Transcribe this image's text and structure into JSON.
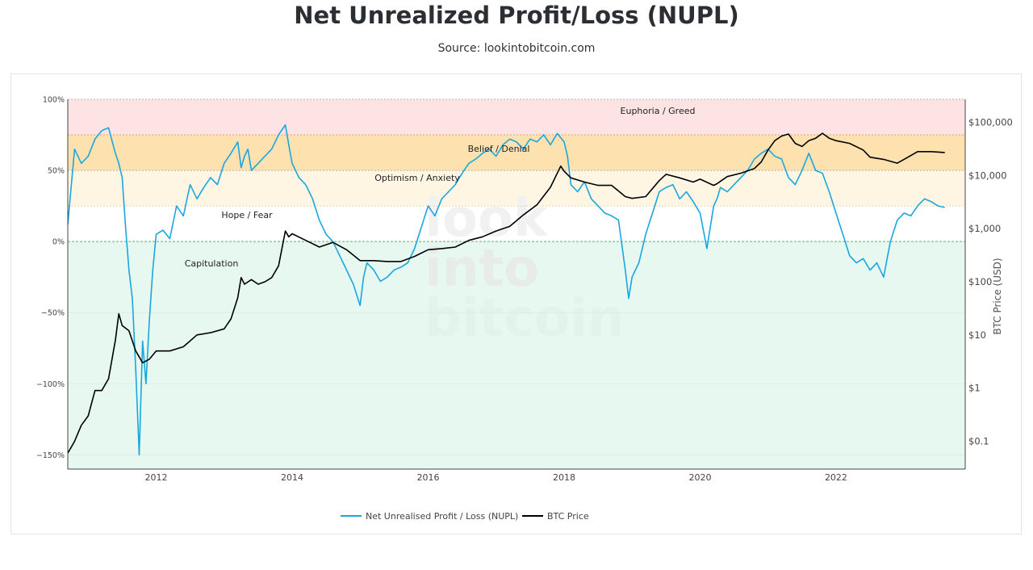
{
  "title": "Net Unrealized Profit/Loss (NUPL)",
  "subtitle": "Source: lookintobitcoin.com",
  "watermark": [
    "look",
    "into",
    "bitcoin"
  ],
  "colors": {
    "nupl": "#1aa6df",
    "btc": "#000000",
    "euphoria": "#fde3e3",
    "belief": "#fde2b0",
    "optimism": "#fef6e3",
    "hope": "#ffffff",
    "capitulation": "#e6f8ef"
  },
  "chart_data": {
    "type": "line",
    "title": "Net Unrealized Profit/Loss (NUPL)",
    "x_range": [
      "2010-09",
      "2023-10"
    ],
    "x_ticks": [
      "2012",
      "2014",
      "2016",
      "2018",
      "2020",
      "2022"
    ],
    "y_left": {
      "label": "",
      "range": [
        -160,
        100
      ],
      "ticks": [
        "100%",
        "50%",
        "0%",
        "−50%",
        "−100%",
        "−150%"
      ],
      "tick_values": [
        100,
        50,
        0,
        -50,
        -100,
        -150
      ]
    },
    "y_right": {
      "label": "BTC Price (USD)",
      "scale": "log",
      "ticks": [
        "$100,000",
        "$10,000",
        "$1,000",
        "$100",
        "$10",
        "$1",
        "$0.1"
      ],
      "tick_values": [
        100000,
        10000,
        1000,
        100,
        10,
        1,
        0.1
      ]
    },
    "zones": [
      {
        "name": "Euphoria / Greed",
        "from": 75,
        "to": 100
      },
      {
        "name": "Belief / Denial",
        "from": 50,
        "to": 75
      },
      {
        "name": "Optimism / Anxiety",
        "from": 25,
        "to": 50
      },
      {
        "name": "Hope / Fear",
        "from": 0,
        "to": 25
      },
      {
        "name": "Capitulation",
        "from": -160,
        "to": 0
      }
    ],
    "legend": [
      "Net Unrealised Profit / Loss (NUPL)",
      "BTC Price"
    ],
    "series": [
      {
        "name": "Net Unrealised Profit / Loss (NUPL)",
        "axis": "left",
        "x": [
          2010.7,
          2010.8,
          2010.9,
          2011.0,
          2011.1,
          2011.2,
          2011.3,
          2011.4,
          2011.45,
          2011.5,
          2011.55,
          2011.6,
          2011.65,
          2011.7,
          2011.75,
          2011.8,
          2011.85,
          2011.9,
          2011.95,
          2012.0,
          2012.1,
          2012.2,
          2012.3,
          2012.4,
          2012.5,
          2012.6,
          2012.7,
          2012.8,
          2012.9,
          2013.0,
          2013.1,
          2013.2,
          2013.25,
          2013.3,
          2013.35,
          2013.4,
          2013.5,
          2013.6,
          2013.7,
          2013.8,
          2013.9,
          2013.95,
          2014.0,
          2014.1,
          2014.2,
          2014.3,
          2014.4,
          2014.5,
          2014.6,
          2014.7,
          2014.8,
          2014.9,
          2015.0,
          2015.05,
          2015.1,
          2015.2,
          2015.3,
          2015.4,
          2015.5,
          2015.6,
          2015.7,
          2015.8,
          2015.9,
          2016.0,
          2016.1,
          2016.2,
          2016.3,
          2016.4,
          2016.5,
          2016.6,
          2016.7,
          2016.8,
          2016.9,
          2017.0,
          2017.1,
          2017.2,
          2017.3,
          2017.4,
          2017.5,
          2017.6,
          2017.7,
          2017.8,
          2017.9,
          2018.0,
          2018.05,
          2018.1,
          2018.2,
          2018.3,
          2018.4,
          2018.5,
          2018.6,
          2018.7,
          2018.8,
          2018.9,
          2018.95,
          2019.0,
          2019.1,
          2019.2,
          2019.3,
          2019.4,
          2019.5,
          2019.6,
          2019.7,
          2019.8,
          2019.9,
          2020.0,
          2020.1,
          2020.2,
          2020.25,
          2020.3,
          2020.4,
          2020.5,
          2020.6,
          2020.7,
          2020.8,
          2020.9,
          2021.0,
          2021.1,
          2021.2,
          2021.3,
          2021.4,
          2021.5,
          2021.6,
          2021.7,
          2021.8,
          2021.9,
          2022.0,
          2022.1,
          2022.2,
          2022.3,
          2022.4,
          2022.5,
          2022.6,
          2022.7,
          2022.8,
          2022.9,
          2023.0,
          2023.1,
          2023.2,
          2023.3,
          2023.4,
          2023.5,
          2023.6
        ],
        "y": [
          12,
          65,
          55,
          60,
          72,
          78,
          80,
          62,
          55,
          45,
          10,
          -20,
          -40,
          -90,
          -150,
          -70,
          -100,
          -55,
          -20,
          5,
          8,
          2,
          25,
          18,
          40,
          30,
          38,
          45,
          40,
          55,
          62,
          70,
          52,
          60,
          65,
          50,
          55,
          60,
          65,
          75,
          82,
          68,
          55,
          45,
          40,
          30,
          15,
          5,
          0,
          -10,
          -20,
          -30,
          -45,
          -25,
          -15,
          -20,
          -28,
          -25,
          -20,
          -18,
          -15,
          -5,
          10,
          25,
          18,
          30,
          35,
          40,
          48,
          55,
          58,
          62,
          65,
          60,
          68,
          72,
          70,
          65,
          72,
          70,
          75,
          68,
          76,
          70,
          60,
          40,
          35,
          42,
          30,
          25,
          20,
          18,
          15,
          -20,
          -40,
          -25,
          -15,
          5,
          20,
          35,
          38,
          40,
          30,
          35,
          28,
          20,
          -5,
          25,
          30,
          38,
          35,
          40,
          45,
          50,
          58,
          62,
          65,
          60,
          58,
          45,
          40,
          50,
          62,
          50,
          48,
          35,
          20,
          5,
          -10,
          -15,
          -12,
          -20,
          -15,
          -25,
          0,
          15,
          20,
          18,
          25,
          30,
          28,
          25,
          24
        ]
      },
      {
        "name": "BTC Price",
        "axis": "right",
        "x": [
          2010.7,
          2010.8,
          2010.9,
          2011.0,
          2011.1,
          2011.2,
          2011.3,
          2011.4,
          2011.45,
          2011.5,
          2011.6,
          2011.7,
          2011.8,
          2011.9,
          2012.0,
          2012.2,
          2012.4,
          2012.6,
          2012.8,
          2013.0,
          2013.1,
          2013.2,
          2013.25,
          2013.3,
          2013.4,
          2013.5,
          2013.6,
          2013.7,
          2013.8,
          2013.9,
          2013.95,
          2014.0,
          2014.2,
          2014.4,
          2014.6,
          2014.8,
          2015.0,
          2015.2,
          2015.4,
          2015.6,
          2015.8,
          2016.0,
          2016.2,
          2016.4,
          2016.6,
          2016.8,
          2017.0,
          2017.2,
          2017.4,
          2017.6,
          2017.8,
          2017.95,
          2018.0,
          2018.1,
          2018.3,
          2018.5,
          2018.7,
          2018.9,
          2019.0,
          2019.2,
          2019.4,
          2019.5,
          2019.7,
          2019.9,
          2020.0,
          2020.2,
          2020.25,
          2020.4,
          2020.6,
          2020.8,
          2020.9,
          2021.0,
          2021.1,
          2021.2,
          2021.3,
          2021.4,
          2021.5,
          2021.6,
          2021.7,
          2021.8,
          2021.9,
          2022.0,
          2022.2,
          2022.4,
          2022.5,
          2022.7,
          2022.9,
          2023.0,
          2023.2,
          2023.4,
          2023.6
        ],
        "y": [
          0.06,
          0.1,
          0.2,
          0.3,
          0.9,
          0.9,
          1.5,
          8,
          25,
          15,
          12,
          5,
          3,
          3.5,
          5,
          5,
          6,
          10,
          11,
          13,
          20,
          50,
          120,
          90,
          110,
          90,
          100,
          120,
          200,
          900,
          700,
          800,
          600,
          450,
          550,
          400,
          250,
          250,
          240,
          240,
          300,
          400,
          420,
          450,
          600,
          700,
          900,
          1100,
          1800,
          2800,
          6000,
          15000,
          12000,
          9000,
          7500,
          6500,
          6500,
          4000,
          3700,
          4000,
          8000,
          10500,
          9000,
          7500,
          8500,
          6500,
          7000,
          9500,
          11000,
          13500,
          18000,
          30000,
          45000,
          55000,
          60000,
          40000,
          35000,
          45000,
          50000,
          62000,
          50000,
          45000,
          40000,
          30000,
          22000,
          20000,
          17000,
          20000,
          28000,
          28000,
          27000
        ]
      }
    ]
  }
}
